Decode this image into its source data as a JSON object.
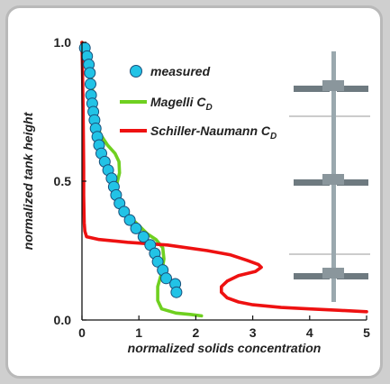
{
  "chart_data": {
    "type": "line",
    "xlabel": "normalized solids concentration",
    "ylabel": "normalized tank height",
    "xlim": [
      0,
      5
    ],
    "ylim": [
      0,
      1
    ],
    "x_ticks": [
      "0",
      "1",
      "2",
      "3",
      "4",
      "5"
    ],
    "y_ticks": [
      "0.0",
      "0.5",
      "1.0"
    ],
    "grid": false,
    "legend_position": "top-right",
    "colors": {
      "measured_fill": "#22c3e6",
      "measured_edge": "#1a4f7a",
      "magelli": "#6fd020",
      "schiller": "#ee1111"
    },
    "legend": {
      "measured": "measured",
      "magelli_prefix": "Magelli C",
      "magelli_sub": "D",
      "schiller_prefix": "Schiller-Naumann C",
      "schiller_sub": "D"
    },
    "series": [
      {
        "name": "measured",
        "kind": "scatter",
        "points": [
          [
            0.05,
            0.98
          ],
          [
            0.09,
            0.95
          ],
          [
            0.12,
            0.92
          ],
          [
            0.14,
            0.89
          ],
          [
            0.15,
            0.85
          ],
          [
            0.16,
            0.81
          ],
          [
            0.18,
            0.78
          ],
          [
            0.2,
            0.75
          ],
          [
            0.22,
            0.72
          ],
          [
            0.24,
            0.69
          ],
          [
            0.27,
            0.66
          ],
          [
            0.3,
            0.63
          ],
          [
            0.34,
            0.6
          ],
          [
            0.4,
            0.57
          ],
          [
            0.46,
            0.54
          ],
          [
            0.52,
            0.51
          ],
          [
            0.56,
            0.48
          ],
          [
            0.6,
            0.45
          ],
          [
            0.66,
            0.42
          ],
          [
            0.74,
            0.39
          ],
          [
            0.84,
            0.36
          ],
          [
            0.95,
            0.33
          ],
          [
            1.08,
            0.3
          ],
          [
            1.2,
            0.27
          ],
          [
            1.28,
            0.24
          ],
          [
            1.33,
            0.21
          ],
          [
            1.42,
            0.18
          ],
          [
            1.48,
            0.15
          ],
          [
            1.64,
            0.13
          ],
          [
            1.66,
            0.1
          ]
        ]
      },
      {
        "name": "Magelli C_D",
        "kind": "line",
        "points": [
          [
            0.0,
            1.0
          ],
          [
            0.1,
            0.95
          ],
          [
            0.15,
            0.9
          ],
          [
            0.2,
            0.8
          ],
          [
            0.25,
            0.72
          ],
          [
            0.32,
            0.67
          ],
          [
            0.45,
            0.63
          ],
          [
            0.58,
            0.6
          ],
          [
            0.65,
            0.57
          ],
          [
            0.66,
            0.53
          ],
          [
            0.6,
            0.48
          ],
          [
            0.6,
            0.45
          ],
          [
            0.7,
            0.41
          ],
          [
            0.85,
            0.37
          ],
          [
            1.0,
            0.34
          ],
          [
            1.15,
            0.31
          ],
          [
            1.3,
            0.29
          ],
          [
            1.42,
            0.26
          ],
          [
            1.44,
            0.22
          ],
          [
            1.4,
            0.17
          ],
          [
            1.33,
            0.12
          ],
          [
            1.33,
            0.07
          ],
          [
            1.4,
            0.04
          ],
          [
            1.65,
            0.025
          ],
          [
            1.9,
            0.02
          ],
          [
            2.1,
            0.015
          ]
        ]
      },
      {
        "name": "Schiller-Naumann C_D",
        "kind": "line",
        "points": [
          [
            0.0,
            1.0
          ],
          [
            0.01,
            0.9
          ],
          [
            0.02,
            0.75
          ],
          [
            0.03,
            0.55
          ],
          [
            0.03,
            0.45
          ],
          [
            0.04,
            0.35
          ],
          [
            0.05,
            0.32
          ],
          [
            0.08,
            0.3
          ],
          [
            0.3,
            0.29
          ],
          [
            0.8,
            0.28
          ],
          [
            1.5,
            0.27
          ],
          [
            2.2,
            0.25
          ],
          [
            2.6,
            0.235
          ],
          [
            2.9,
            0.215
          ],
          [
            3.1,
            0.2
          ],
          [
            3.15,
            0.19
          ],
          [
            3.05,
            0.175
          ],
          [
            2.75,
            0.16
          ],
          [
            2.55,
            0.14
          ],
          [
            2.45,
            0.12
          ],
          [
            2.45,
            0.1
          ],
          [
            2.55,
            0.08
          ],
          [
            2.75,
            0.065
          ],
          [
            3.0,
            0.055
          ],
          [
            3.5,
            0.045
          ],
          [
            4.0,
            0.04
          ],
          [
            4.5,
            0.035
          ],
          [
            5.0,
            0.03
          ]
        ]
      }
    ]
  }
}
